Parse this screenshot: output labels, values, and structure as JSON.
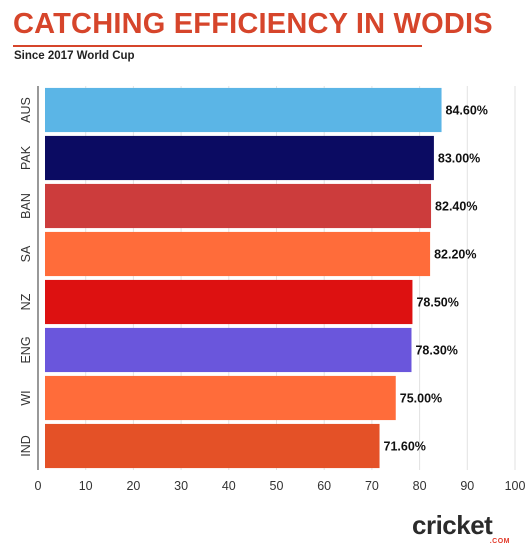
{
  "header": {
    "title": "CATCHING EFFICIENCY IN WODIS",
    "subtitle": "Since 2017 World Cup"
  },
  "logo": {
    "main_text": "cricket",
    "sub_text": ".COM"
  },
  "chart_data": {
    "type": "bar",
    "orientation": "horizontal",
    "categories": [
      "AUS",
      "PAK",
      "BAN",
      "SA",
      "NZ",
      "ENG",
      "WI",
      "IND"
    ],
    "values": [
      84.6,
      83.0,
      82.4,
      82.2,
      78.5,
      78.3,
      75.0,
      71.6
    ],
    "value_labels": [
      "84.60%",
      "83.00%",
      "82.40%",
      "82.20%",
      "78.50%",
      "78.30%",
      "75.00%",
      "71.60%"
    ],
    "colors": [
      "#5bb5e6",
      "#0b0b62",
      "#cc3c3c",
      "#ff6c3a",
      "#dd1111",
      "#6a56dc",
      "#ff6c3a",
      "#e45127"
    ],
    "title": "CATCHING EFFICIENCY IN WODIS",
    "subtitle": "Since 2017 World Cup",
    "xlabel": "",
    "ylabel": "",
    "xlim": [
      0,
      100
    ],
    "xticks": [
      0,
      10,
      20,
      30,
      40,
      50,
      60,
      70,
      80,
      90,
      100
    ],
    "grid": true
  }
}
